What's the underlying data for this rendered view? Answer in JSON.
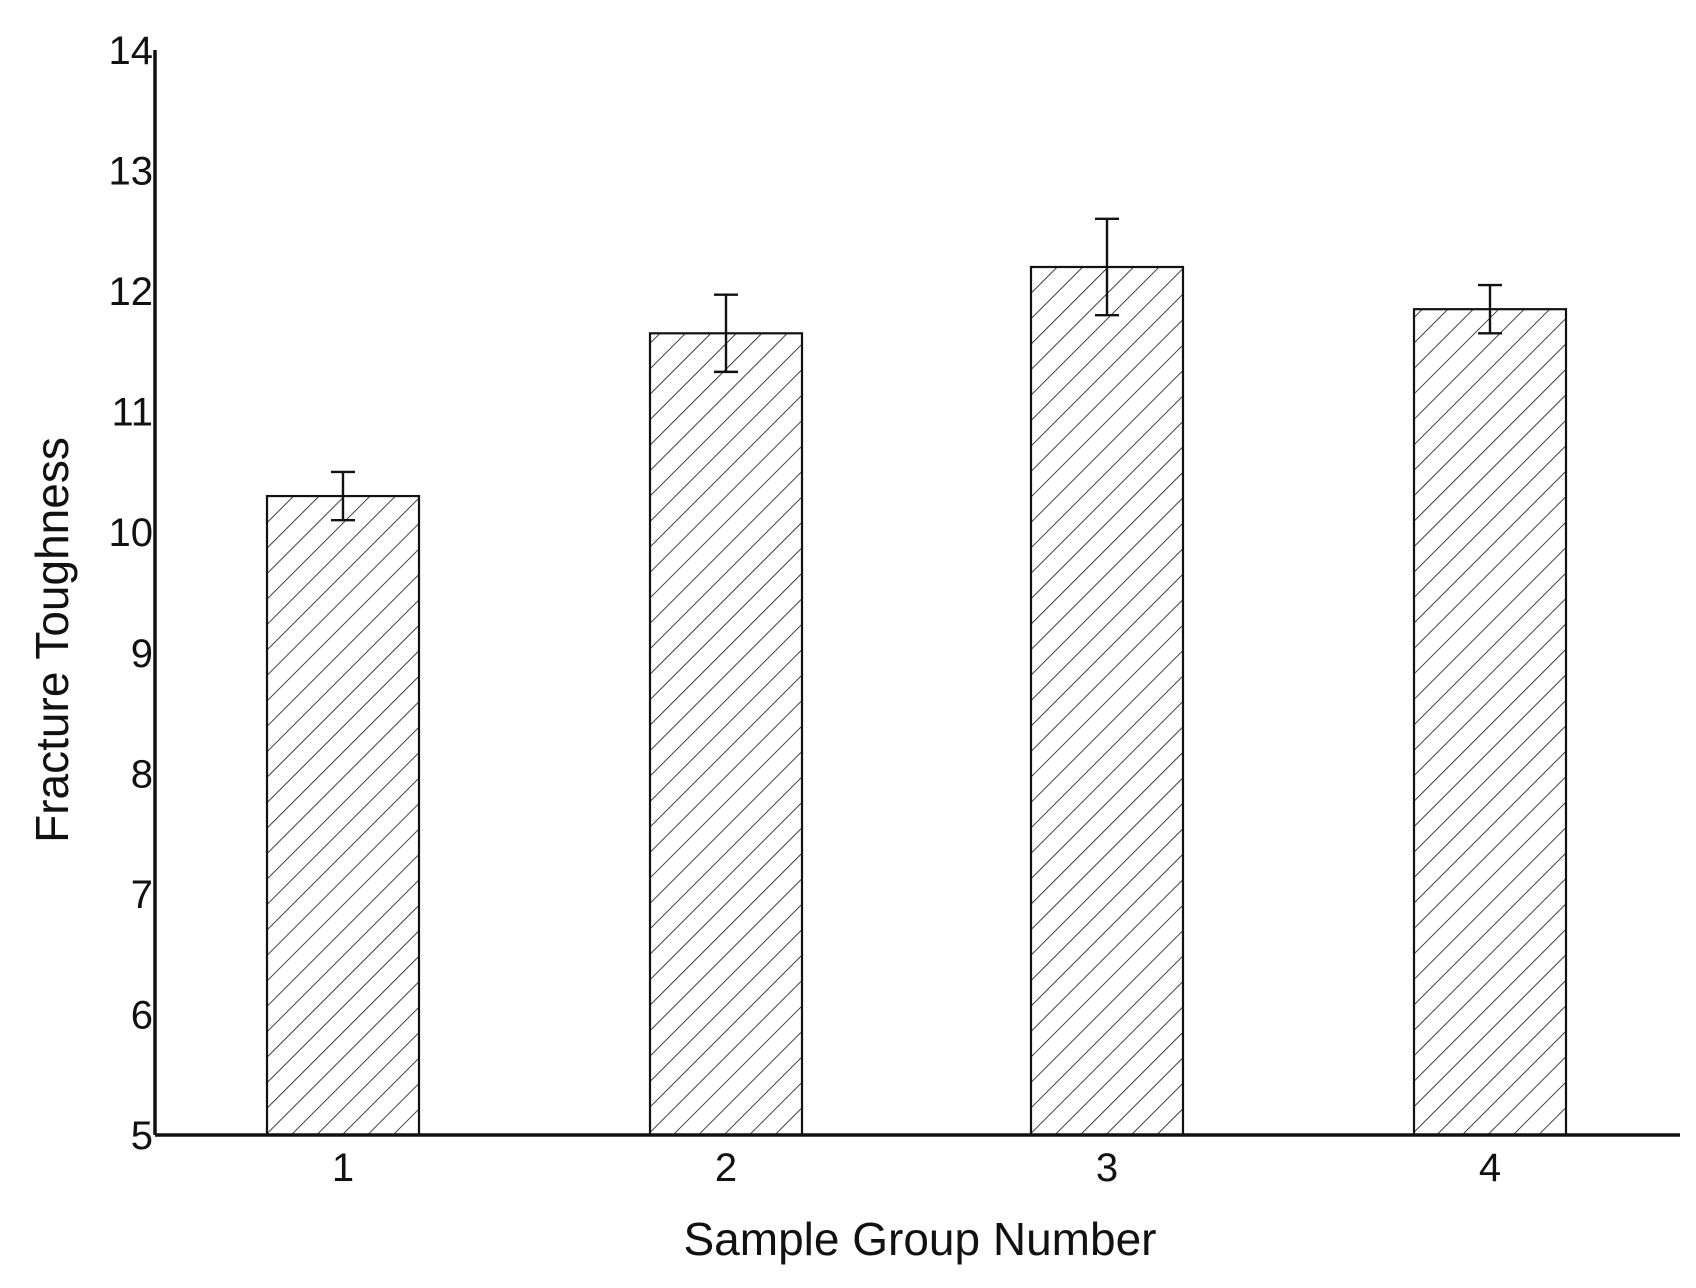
{
  "chart_data": {
    "type": "bar",
    "title": "",
    "xlabel": "Sample Group Number",
    "ylabel": "Fracture Toughness",
    "categories": [
      "1",
      "2",
      "3",
      "4"
    ],
    "values": [
      10.3,
      11.65,
      12.2,
      11.85
    ],
    "error": [
      0.2,
      0.32,
      0.4,
      0.2
    ],
    "ylim": [
      5,
      14
    ],
    "yticks": [
      "5",
      "6",
      "7",
      "8",
      "9",
      "10",
      "11",
      "12",
      "13",
      "14"
    ],
    "grid": false,
    "legend": "none",
    "bar_fill": "hatched",
    "colors": {
      "axis": "#111111",
      "bar_edge": "#111111",
      "hatch": "#111111",
      "background": "#ffffff"
    }
  }
}
